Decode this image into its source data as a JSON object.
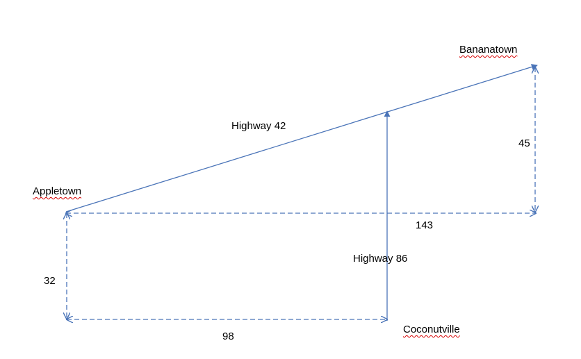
{
  "towns": {
    "appletown": "Appletown",
    "bananatown": "Bananatown",
    "coconutville": "Coconutville"
  },
  "roads": {
    "highway_42": "Highway 42",
    "highway_86": "Highway 86"
  },
  "distances": {
    "appletown_to_bananatown_vertical": "45",
    "appletown_to_bananatown_horizontal": "143",
    "appletown_to_coconutville_vertical": "32",
    "appletown_to_coconutville_horizontal": "98"
  },
  "colors": {
    "line": "#4a74b8",
    "spellcheck_underline": "#d60000"
  }
}
